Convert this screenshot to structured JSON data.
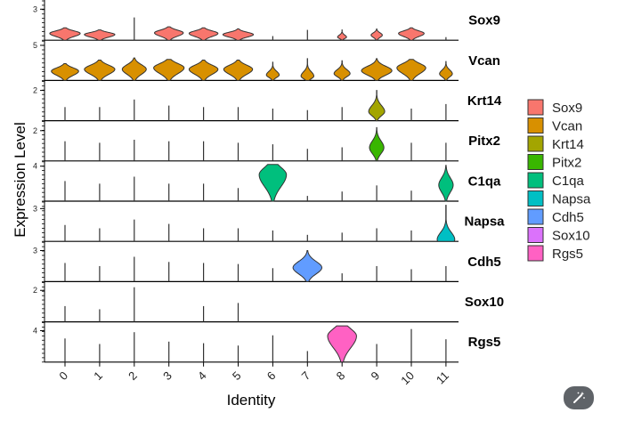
{
  "chart_data": {
    "type": "violin",
    "xlabel": "Identity",
    "ylabel": "Expression Level",
    "categories": [
      "0",
      "1",
      "2",
      "3",
      "4",
      "5",
      "6",
      "7",
      "8",
      "9",
      "10",
      "11"
    ],
    "legend_position": "right",
    "panels": [
      {
        "gene": "Sox9",
        "color": "#F8766D",
        "ytick": "3",
        "ymax": 3.8,
        "max": [
          1.2,
          1.0,
          2.2,
          1.3,
          1.2,
          1.1,
          0.4,
          1.0,
          1.0,
          1.1,
          1.2,
          0.3
        ],
        "width": [
          0.95,
          0.95,
          0,
          0.9,
          0.9,
          0.95,
          0,
          0,
          0.28,
          0.35,
          0.8,
          0
        ],
        "mode": [
          0.55,
          0.55,
          0,
          0.55,
          0.55,
          0.5,
          0,
          0,
          0.3,
          0.45,
          0.55,
          0
        ]
      },
      {
        "gene": "Vcan",
        "color": "#D89000",
        "ytick": "5",
        "ymax": 5.6,
        "max": [
          2.4,
          2.9,
          3.2,
          3.0,
          2.9,
          2.9,
          2.6,
          3.1,
          2.8,
          3.1,
          3.0,
          2.7
        ],
        "width": [
          0.85,
          0.95,
          0.75,
          0.95,
          0.9,
          0.9,
          0.4,
          0.4,
          0.5,
          0.95,
          0.9,
          0.4
        ],
        "mode": [
          0.55,
          0.55,
          0.5,
          0.6,
          0.55,
          0.55,
          0.3,
          0.2,
          0.35,
          0.45,
          0.6,
          0.35
        ]
      },
      {
        "gene": "Krt14",
        "color": "#A3A500",
        "ytick": "2",
        "ymax": 2.6,
        "max": [
          0.9,
          0.9,
          1.4,
          1.0,
          0.9,
          0.9,
          0.8,
          0.7,
          0.9,
          2.0,
          0.8,
          1.1
        ],
        "width": [
          0,
          0,
          0,
          0,
          0,
          0,
          0,
          0,
          0,
          0.5,
          0,
          0
        ],
        "mode": [
          0,
          0,
          0,
          0,
          0,
          0,
          0,
          0,
          0,
          0.3,
          0,
          0
        ]
      },
      {
        "gene": "Pitx2",
        "color": "#39B600",
        "ytick": "2",
        "ymax": 2.6,
        "max": [
          1.3,
          1.2,
          1.4,
          1.3,
          1.3,
          1.2,
          1.1,
          0.8,
          0.9,
          2.2,
          1.2,
          1.2
        ],
        "width": [
          0,
          0,
          0,
          0,
          0,
          0,
          0,
          0,
          0,
          0.45,
          0,
          0
        ],
        "mode": [
          0,
          0,
          0,
          0,
          0,
          0,
          0,
          0,
          0,
          0.4,
          0,
          0
        ]
      },
      {
        "gene": "C1qa",
        "color": "#00BF7D",
        "ytick": "4",
        "ymax": 4.5,
        "max": [
          2.3,
          2.0,
          2.8,
          2.0,
          2.0,
          1.5,
          4.2,
          0.6,
          1.1,
          1.8,
          1.2,
          4.1
        ],
        "width": [
          0,
          0,
          0,
          0,
          0,
          0,
          0.85,
          0,
          0,
          0,
          0,
          0.45
        ],
        "mode": [
          0,
          0,
          0,
          0,
          0,
          0,
          0.72,
          0,
          0,
          0,
          0,
          0.45
        ]
      },
      {
        "gene": "Napsa",
        "color": "#00BFC4",
        "ytick": "3",
        "ymax": 3.6,
        "max": [
          1.5,
          1.2,
          2.0,
          1.6,
          1.2,
          1.2,
          1.0,
          0.6,
          0.8,
          1.2,
          1.0,
          3.3
        ],
        "width": [
          0,
          0,
          0,
          0,
          0,
          0,
          0,
          0,
          0,
          0,
          0,
          0.55
        ],
        "mode": [
          0,
          0,
          0,
          0,
          0,
          0,
          0,
          0,
          0,
          0,
          0,
          0.05
        ]
      },
      {
        "gene": "Cdh5",
        "color": "#619CFF",
        "ytick": "3",
        "ymax": 3.8,
        "max": [
          1.8,
          1.5,
          2.4,
          1.9,
          1.8,
          1.7,
          1.3,
          3.0,
          0.8,
          1.5,
          1.2,
          1.5
        ],
        "width": [
          0,
          0,
          0,
          0,
          0,
          0,
          0,
          0.9,
          0,
          0,
          0,
          0
        ],
        "mode": [
          0,
          0,
          0,
          0,
          0,
          0,
          0,
          0.45,
          0,
          0,
          0,
          0
        ]
      },
      {
        "gene": "Sox10",
        "color": "#DB72FB",
        "ytick": "2",
        "ymax": 2.5,
        "max": [
          1.0,
          0.8,
          2.2,
          0,
          1.0,
          1.2,
          0,
          0,
          0,
          0,
          0,
          0
        ],
        "width": [
          0,
          0,
          0,
          0,
          0,
          0,
          0,
          0,
          0,
          0,
          0,
          0
        ],
        "mode": [
          0,
          0,
          0,
          0,
          0,
          0,
          0,
          0,
          0,
          0,
          0,
          0
        ]
      },
      {
        "gene": "Rgs5",
        "color": "#FF61C3",
        "ytick": "4",
        "ymax": 5.0,
        "max": [
          3.0,
          2.3,
          3.8,
          2.6,
          2.4,
          2.1,
          3.4,
          1.4,
          4.6,
          2.3,
          4.2,
          2.9
        ],
        "width": [
          0,
          0,
          0,
          0,
          0,
          0,
          0,
          0,
          0.9,
          0,
          0,
          0
        ],
        "mode": [
          0,
          0,
          0,
          0,
          0,
          0,
          0,
          0,
          0.72,
          0,
          0,
          0
        ]
      }
    ],
    "legend": [
      "Sox9",
      "Vcan",
      "Krt14",
      "Pitx2",
      "C1qa",
      "Napsa",
      "Cdh5",
      "Sox10",
      "Rgs5"
    ]
  },
  "icons": {
    "corner_button": "magic-wand-icon"
  }
}
